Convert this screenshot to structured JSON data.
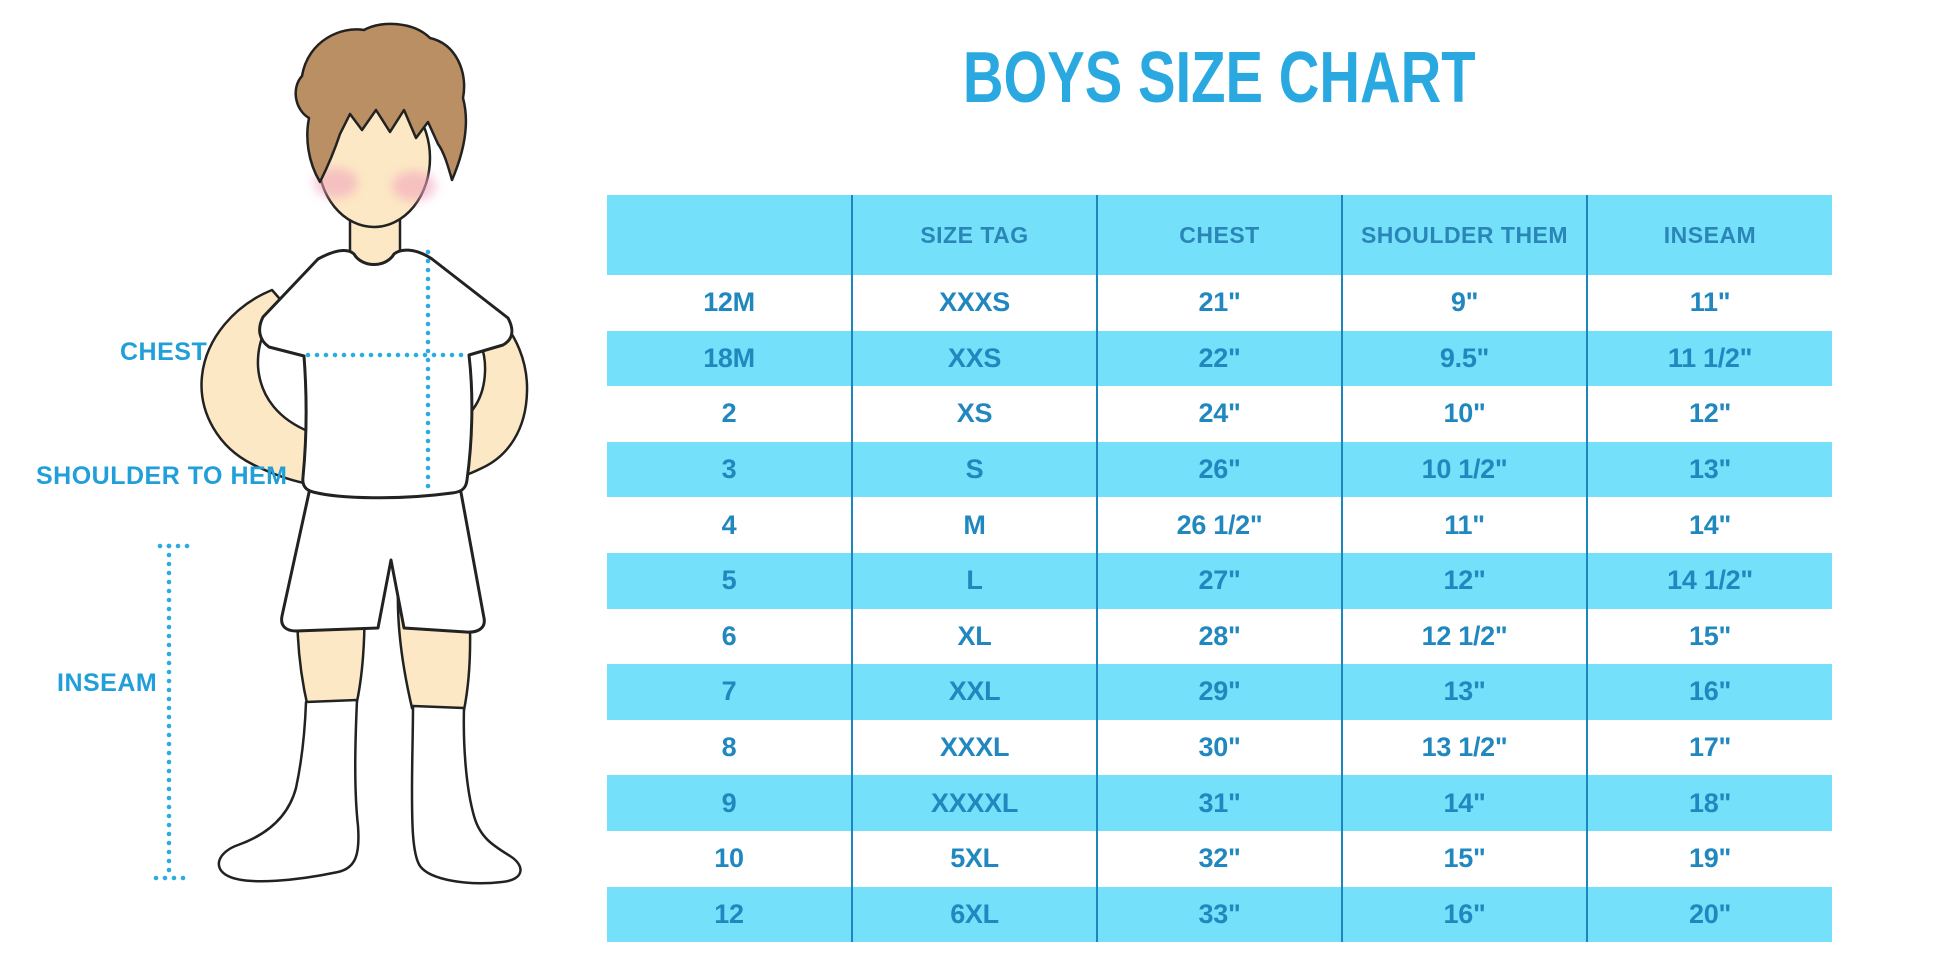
{
  "colors": {
    "title_blue": "#2AA9E1",
    "label_blue": "#219FD9",
    "row_cyan": "#74E0FA",
    "divider_blue": "#1E86BE",
    "header_text_blue": "#2B86B8",
    "cell_text_blue": "#2188BF",
    "dotted_line_blue": "#2AACE3",
    "skin_tone": "#FCE8C4",
    "hair_brown": "#B98F63",
    "cheek_pink": "#F2A6BE"
  },
  "figure": {
    "labels": {
      "chest": "CHEST",
      "shoulder_to_hem": "SHOULDER TO HEM",
      "inseam": "INSEAM"
    }
  },
  "chart_data": {
    "type": "table",
    "title": "BOYS SIZE CHART",
    "columns": [
      "",
      "SIZE TAG",
      "CHEST",
      "SHOULDER THEM",
      "INSEAM"
    ],
    "rows": [
      [
        "12M",
        "XXXS",
        "21\"",
        "9\"",
        "11\""
      ],
      [
        "18M",
        "XXS",
        "22\"",
        "9.5\"",
        "11 1/2\""
      ],
      [
        "2",
        "XS",
        "24\"",
        "10\"",
        "12\""
      ],
      [
        "3",
        "S",
        "26\"",
        "10 1/2\"",
        "13\""
      ],
      [
        "4",
        "M",
        "26 1/2\"",
        "11\"",
        "14\""
      ],
      [
        "5",
        "L",
        "27\"",
        "12\"",
        "14 1/2\""
      ],
      [
        "6",
        "XL",
        "28\"",
        "12 1/2\"",
        "15\""
      ],
      [
        "7",
        "XXL",
        "29\"",
        "13\"",
        "16\""
      ],
      [
        "8",
        "XXXL",
        "30\"",
        "13 1/2\"",
        "17\""
      ],
      [
        "9",
        "XXXXL",
        "31\"",
        "14\"",
        "18\""
      ],
      [
        "10",
        "5XL",
        "32\"",
        "15\"",
        "19\""
      ],
      [
        "12",
        "6XL",
        "33\"",
        "16\"",
        "20\""
      ]
    ]
  }
}
